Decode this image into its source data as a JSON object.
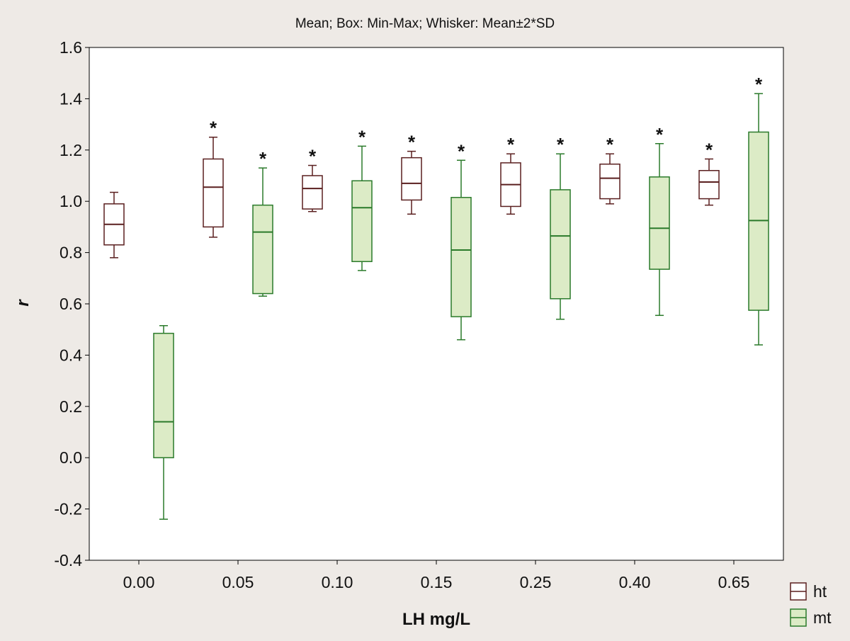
{
  "chart_data": {
    "type": "box",
    "title": "Mean; Box: Min-Max; Whisker: Mean±2*SD",
    "xlabel": "LH mg/L",
    "ylabel": "r",
    "ylim": [
      -0.4,
      1.6
    ],
    "yticks": [
      -0.4,
      -0.2,
      0.0,
      0.2,
      0.4,
      0.6,
      0.8,
      1.0,
      1.2,
      1.4,
      1.6
    ],
    "ytick_labels": [
      "-0.4",
      "-0.2",
      "0.0",
      "0.2",
      "0.4",
      "0.6",
      "0.8",
      "1.0",
      "1.2",
      "1.4",
      "1.6"
    ],
    "categories": [
      "0.00",
      "0.05",
      "0.10",
      "0.15",
      "0.25",
      "0.40",
      "0.65"
    ],
    "grid": false,
    "legend_position": "bottom-right",
    "significance_marker": "*",
    "series": [
      {
        "name": "ht",
        "color": "#5a1f1f",
        "fill": "#ffffff",
        "mean": [
          0.91,
          1.055,
          1.05,
          1.07,
          1.065,
          1.09,
          1.075
        ],
        "box_min": [
          0.83,
          0.9,
          0.97,
          1.005,
          0.98,
          1.01,
          1.01
        ],
        "box_max": [
          0.99,
          1.165,
          1.1,
          1.17,
          1.15,
          1.145,
          1.12
        ],
        "whisker_low": [
          0.78,
          0.86,
          0.96,
          0.95,
          0.95,
          0.99,
          0.985
        ],
        "whisker_high": [
          1.035,
          1.25,
          1.14,
          1.195,
          1.185,
          1.185,
          1.165
        ],
        "significant": [
          false,
          true,
          true,
          true,
          true,
          true,
          true
        ]
      },
      {
        "name": "mt",
        "color": "#2a7a2a",
        "fill": "#dcebc6",
        "mean": [
          0.14,
          0.88,
          0.975,
          0.81,
          0.865,
          0.895,
          0.925
        ],
        "box_min": [
          0.0,
          0.64,
          0.765,
          0.55,
          0.62,
          0.735,
          0.575
        ],
        "box_max": [
          0.485,
          0.985,
          1.08,
          1.015,
          1.045,
          1.095,
          1.27
        ],
        "whisker_low": [
          -0.24,
          0.63,
          0.73,
          0.46,
          0.54,
          0.555,
          0.44
        ],
        "whisker_high": [
          0.515,
          1.13,
          1.215,
          1.16,
          1.185,
          1.225,
          1.42
        ],
        "significant": [
          false,
          true,
          true,
          true,
          true,
          true,
          true
        ]
      }
    ]
  }
}
